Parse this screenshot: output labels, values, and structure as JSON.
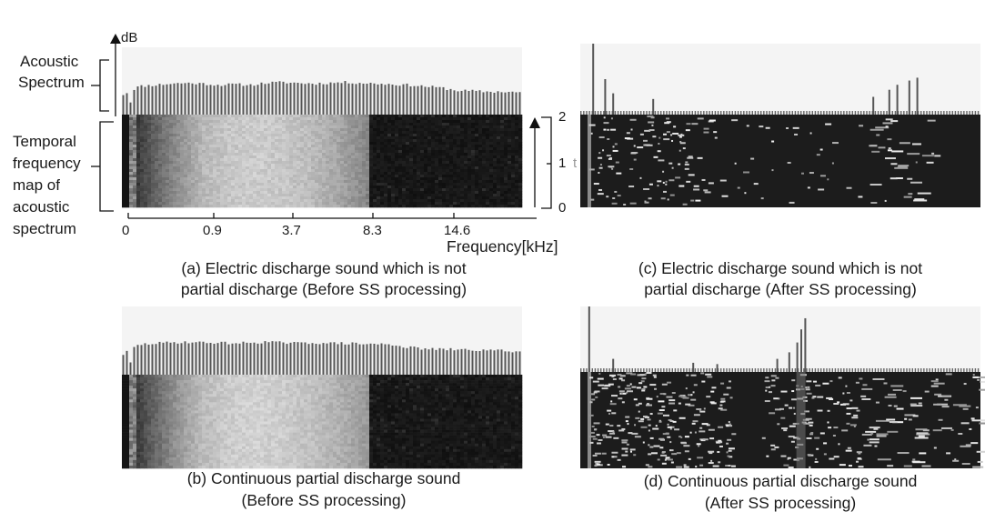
{
  "figure": {
    "db_label": "dB",
    "acoustic_spectrum_label": [
      "Acoustic",
      "Spectrum"
    ],
    "temporal_map_label": [
      "Temporal",
      "frequency",
      "map of",
      "acoustic",
      "spectrum"
    ],
    "time_axis_ticks": [
      "2",
      "1",
      "0"
    ],
    "time_axis_stray_char": "t",
    "freq_axis_ticks": [
      "0",
      "0.9",
      "3.7",
      "8.3",
      "14.6"
    ],
    "freq_axis_label": "Frequency[kHz]"
  },
  "panels": [
    {
      "id": "a",
      "caption": [
        "(a) Electric discharge sound which is not",
        "partial discharge (Before SS processing)"
      ]
    },
    {
      "id": "b",
      "caption": [
        "(b) Continuous partial discharge sound",
        "(Before SS processing)"
      ]
    },
    {
      "id": "c",
      "caption": [
        "(c) Electric discharge sound which is not",
        "partial discharge (After SS processing)"
      ]
    },
    {
      "id": "d",
      "caption": [
        "(d) Continuous partial discharge sound",
        "(After SS processing)"
      ]
    }
  ],
  "chart_data": [
    {
      "panel": "a",
      "type": "heatmap",
      "x": [
        0,
        0.9,
        3.7,
        8.3,
        14.6
      ],
      "xlabel": "Frequency[kHz]",
      "ylabel": "dB",
      "time_ylim": [
        0,
        2
      ],
      "spectrum_level": [
        0.3,
        0.42,
        0.44,
        0.46,
        0.47,
        0.46,
        0.44,
        0.45,
        0.44,
        0.47,
        0.48,
        0.47,
        0.46,
        0.47,
        0.48,
        0.47,
        0.46,
        0.45,
        0.44,
        0.42,
        0.4,
        0.36,
        0.35,
        0.34,
        0.34,
        0.33
      ],
      "map_brightness": [
        0.1,
        0.34,
        0.55,
        0.72,
        0.78,
        0.8,
        0.78,
        0.74,
        0.66,
        0.55,
        0.4,
        0.22,
        0.12,
        0.08,
        0.06,
        0.05
      ]
    },
    {
      "panel": "b",
      "type": "heatmap",
      "x": [
        0,
        0.9,
        3.7,
        8.3,
        14.6
      ],
      "xlabel": "Frequency[kHz]",
      "ylabel": "dB",
      "spectrum_level": [
        0.3,
        0.44,
        0.46,
        0.47,
        0.48,
        0.47,
        0.47,
        0.46,
        0.47,
        0.48,
        0.47,
        0.46,
        0.47,
        0.46,
        0.46,
        0.45,
        0.45,
        0.44,
        0.4,
        0.38,
        0.37,
        0.37,
        0.36,
        0.36,
        0.35,
        0.34
      ],
      "map_brightness": [
        0.1,
        0.36,
        0.58,
        0.74,
        0.8,
        0.82,
        0.8,
        0.76,
        0.7,
        0.62,
        0.5,
        0.36,
        0.2,
        0.12,
        0.08,
        0.06
      ]
    },
    {
      "panel": "c",
      "type": "heatmap",
      "ylabel": "dB",
      "spectrum_peaks": [
        {
          "f": 0.03,
          "h": 1.0
        },
        {
          "f": 0.06,
          "h": 0.5
        },
        {
          "f": 0.08,
          "h": 0.3
        },
        {
          "f": 0.18,
          "h": 0.22
        },
        {
          "f": 0.73,
          "h": 0.25
        },
        {
          "f": 0.77,
          "h": 0.35
        },
        {
          "f": 0.79,
          "h": 0.42
        },
        {
          "f": 0.82,
          "h": 0.48
        },
        {
          "f": 0.84,
          "h": 0.52
        }
      ],
      "map_activity": "sparse"
    },
    {
      "panel": "d",
      "type": "heatmap",
      "ylabel": "dB",
      "spectrum_peaks": [
        {
          "f": 0.02,
          "h": 1.0
        },
        {
          "f": 0.08,
          "h": 0.2
        },
        {
          "f": 0.28,
          "h": 0.14
        },
        {
          "f": 0.34,
          "h": 0.12
        },
        {
          "f": 0.49,
          "h": 0.2
        },
        {
          "f": 0.52,
          "h": 0.3
        },
        {
          "f": 0.54,
          "h": 0.45
        },
        {
          "f": 0.55,
          "h": 0.65
        },
        {
          "f": 0.56,
          "h": 0.82
        }
      ],
      "map_activity": "dense"
    }
  ]
}
